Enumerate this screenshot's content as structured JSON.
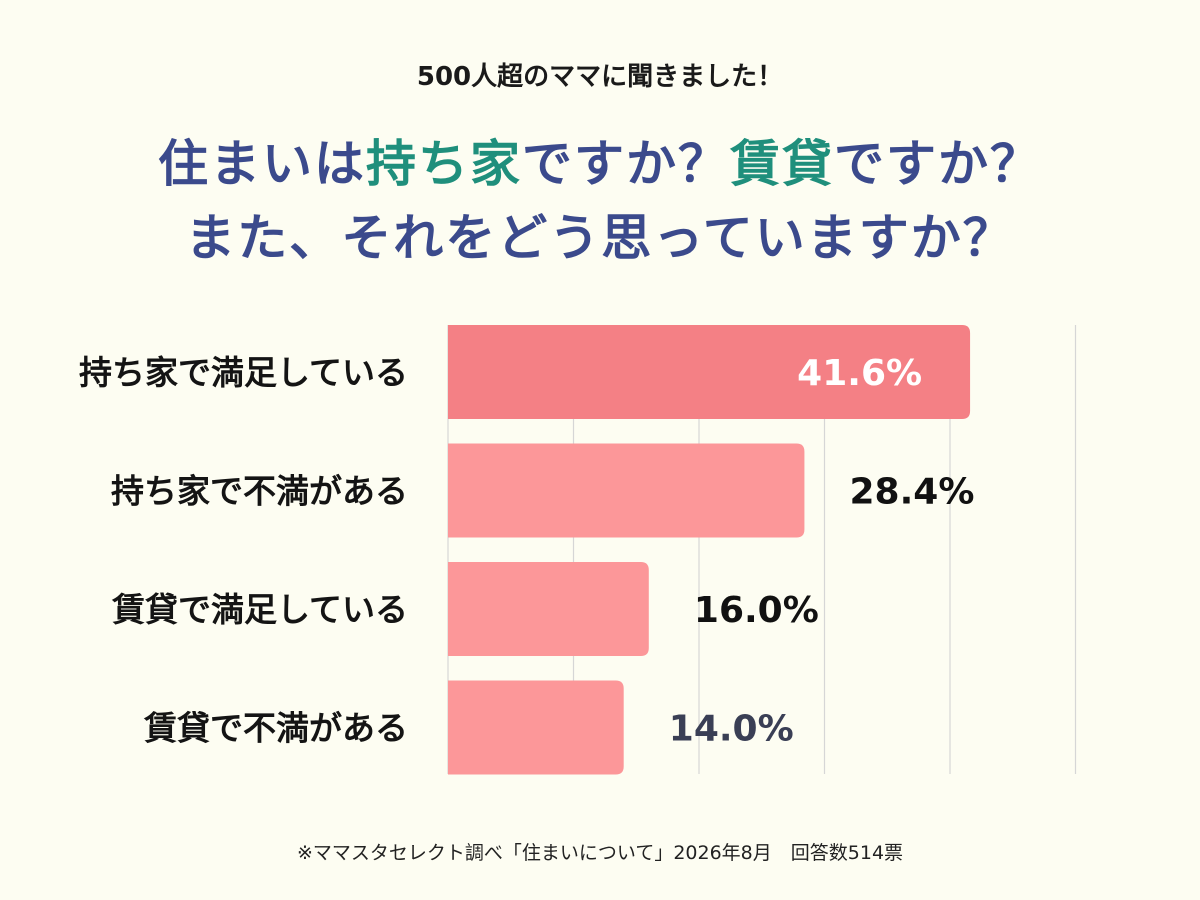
{
  "header": {
    "subtitle": "500人超のママに聞きました！",
    "headline_line1_a": "住まいは",
    "headline_line1_b": "持ち家",
    "headline_line1_c": "ですか？",
    "headline_line1_d": "賃貸",
    "headline_line1_e": "ですか？",
    "headline_line2": "また、それをどう思っていますか？"
  },
  "colors": {
    "headline": "#3b4a8c",
    "highlight": "#1f8f7c",
    "bar_top": "#f48085",
    "bar": "#fc9799",
    "value_on_bar": "#ffffff",
    "value_dark": "#111111",
    "value_last": "#3a3f55",
    "grid": "#d6d6d6"
  },
  "chart_data": {
    "type": "bar",
    "orientation": "horizontal",
    "categories": [
      "持ち家で満足している",
      "持ち家で不満がある",
      "賃貸で満足している",
      "賃貸で不満がある"
    ],
    "values": [
      41.6,
      28.4,
      16.0,
      14.0
    ],
    "value_labels": [
      "41.6%",
      "28.4%",
      "16.0%",
      "14.0%"
    ],
    "xlim": [
      0,
      50
    ],
    "grid": true,
    "legend": "none"
  },
  "footer": {
    "note": "※ママスタセレクト調べ「住まいについて」2026年8月　回答数514票"
  }
}
